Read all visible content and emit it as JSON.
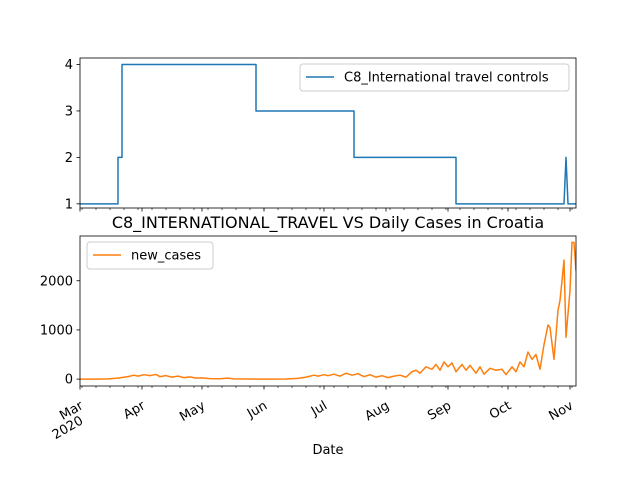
{
  "chart_data": [
    {
      "type": "line",
      "title": "",
      "xlabel": "",
      "ylabel": "",
      "x_range": [
        "2020-03-01",
        "2020-11-01"
      ],
      "ylim": [
        0.91,
        4.14
      ],
      "yticks": [
        1,
        2,
        3,
        4
      ],
      "grid": false,
      "legend_position": "upper right",
      "series": [
        {
          "name": "C8_International travel controls",
          "color": "#1f77b4",
          "points": [
            [
              "2020-03-01",
              1
            ],
            [
              "2020-03-20",
              1
            ],
            [
              "2020-03-20",
              2
            ],
            [
              "2020-03-22",
              2
            ],
            [
              "2020-03-22",
              4
            ],
            [
              "2020-05-28",
              4
            ],
            [
              "2020-05-28",
              3
            ],
            [
              "2020-07-16",
              3
            ],
            [
              "2020-07-16",
              2
            ],
            [
              "2020-09-05",
              2
            ],
            [
              "2020-09-05",
              1
            ],
            [
              "2020-10-29",
              1
            ],
            [
              "2020-10-30",
              2
            ],
            [
              "2020-10-31",
              1
            ],
            [
              "2020-11-04",
              1
            ]
          ]
        }
      ]
    },
    {
      "type": "line",
      "title": "C8_INTERNATIONAL_TRAVEL VS Daily Cases in Croatia",
      "xlabel": "Date",
      "ylabel": "",
      "x_range": [
        "2020-03-01",
        "2020-11-01"
      ],
      "ylim": [
        -140,
        2910
      ],
      "yticks": [
        0,
        1000,
        2000
      ],
      "grid": false,
      "legend_position": "upper left",
      "x_tick_labels": [
        {
          "date": "2020-03-01",
          "label": "Mar",
          "label2": "2020"
        },
        {
          "date": "2020-04-01",
          "label": "Apr",
          "label2": ""
        },
        {
          "date": "2020-05-01",
          "label": "May",
          "label2": ""
        },
        {
          "date": "2020-06-01",
          "label": "Jun",
          "label2": ""
        },
        {
          "date": "2020-07-01",
          "label": "Jul",
          "label2": ""
        },
        {
          "date": "2020-08-01",
          "label": "Aug",
          "label2": ""
        },
        {
          "date": "2020-09-01",
          "label": "Sep",
          "label2": ""
        },
        {
          "date": "2020-10-01",
          "label": "Oct",
          "label2": ""
        },
        {
          "date": "2020-11-01",
          "label": "Nov",
          "label2": ""
        }
      ],
      "series": [
        {
          "name": "new_cases",
          "color": "#ff7f0e",
          "points": [
            [
              "2020-03-01",
              0
            ],
            [
              "2020-03-10",
              1
            ],
            [
              "2020-03-15",
              4
            ],
            [
              "2020-03-20",
              20
            ],
            [
              "2020-03-25",
              50
            ],
            [
              "2020-03-28",
              80
            ],
            [
              "2020-03-30",
              60
            ],
            [
              "2020-04-02",
              90
            ],
            [
              "2020-04-05",
              70
            ],
            [
              "2020-04-08",
              95
            ],
            [
              "2020-04-10",
              50
            ],
            [
              "2020-04-13",
              70
            ],
            [
              "2020-04-16",
              40
            ],
            [
              "2020-04-19",
              60
            ],
            [
              "2020-04-22",
              30
            ],
            [
              "2020-04-25",
              45
            ],
            [
              "2020-04-28",
              20
            ],
            [
              "2020-05-01",
              25
            ],
            [
              "2020-05-05",
              10
            ],
            [
              "2020-05-10",
              8
            ],
            [
              "2020-05-14",
              20
            ],
            [
              "2020-05-17",
              5
            ],
            [
              "2020-05-22",
              3
            ],
            [
              "2020-05-28",
              1
            ],
            [
              "2020-06-05",
              0
            ],
            [
              "2020-06-12",
              2
            ],
            [
              "2020-06-18",
              15
            ],
            [
              "2020-06-22",
              40
            ],
            [
              "2020-06-26",
              80
            ],
            [
              "2020-06-28",
              60
            ],
            [
              "2020-07-01",
              90
            ],
            [
              "2020-07-03",
              70
            ],
            [
              "2020-07-06",
              100
            ],
            [
              "2020-07-09",
              60
            ],
            [
              "2020-07-12",
              120
            ],
            [
              "2020-07-15",
              80
            ],
            [
              "2020-07-18",
              110
            ],
            [
              "2020-07-21",
              50
            ],
            [
              "2020-07-24",
              90
            ],
            [
              "2020-07-27",
              40
            ],
            [
              "2020-07-30",
              70
            ],
            [
              "2020-08-02",
              30
            ],
            [
              "2020-08-05",
              60
            ],
            [
              "2020-08-08",
              80
            ],
            [
              "2020-08-11",
              40
            ],
            [
              "2020-08-14",
              150
            ],
            [
              "2020-08-16",
              180
            ],
            [
              "2020-08-18",
              120
            ],
            [
              "2020-08-21",
              250
            ],
            [
              "2020-08-24",
              200
            ],
            [
              "2020-08-26",
              300
            ],
            [
              "2020-08-28",
              180
            ],
            [
              "2020-08-30",
              350
            ],
            [
              "2020-09-01",
              250
            ],
            [
              "2020-09-03",
              330
            ],
            [
              "2020-09-05",
              150
            ],
            [
              "2020-09-08",
              300
            ],
            [
              "2020-09-10",
              180
            ],
            [
              "2020-09-12",
              280
            ],
            [
              "2020-09-15",
              120
            ],
            [
              "2020-09-17",
              250
            ],
            [
              "2020-09-19",
              100
            ],
            [
              "2020-09-22",
              220
            ],
            [
              "2020-09-25",
              180
            ],
            [
              "2020-09-28",
              200
            ],
            [
              "2020-09-30",
              90
            ],
            [
              "2020-10-03",
              250
            ],
            [
              "2020-10-05",
              150
            ],
            [
              "2020-10-07",
              350
            ],
            [
              "2020-10-09",
              250
            ],
            [
              "2020-10-11",
              550
            ],
            [
              "2020-10-13",
              400
            ],
            [
              "2020-10-15",
              500
            ],
            [
              "2020-10-17",
              200
            ],
            [
              "2020-10-19",
              700
            ],
            [
              "2020-10-21",
              1100
            ],
            [
              "2020-10-22",
              1050
            ],
            [
              "2020-10-24",
              400
            ],
            [
              "2020-10-26",
              1400
            ],
            [
              "2020-10-27",
              1600
            ],
            [
              "2020-10-28",
              2000
            ],
            [
              "2020-10-29",
              2420
            ],
            [
              "2020-10-30",
              850
            ],
            [
              "2020-11-01",
              1800
            ],
            [
              "2020-11-02",
              2780
            ],
            [
              "2020-11-03",
              2780
            ],
            [
              "2020-11-04",
              2200
            ]
          ]
        }
      ]
    }
  ]
}
